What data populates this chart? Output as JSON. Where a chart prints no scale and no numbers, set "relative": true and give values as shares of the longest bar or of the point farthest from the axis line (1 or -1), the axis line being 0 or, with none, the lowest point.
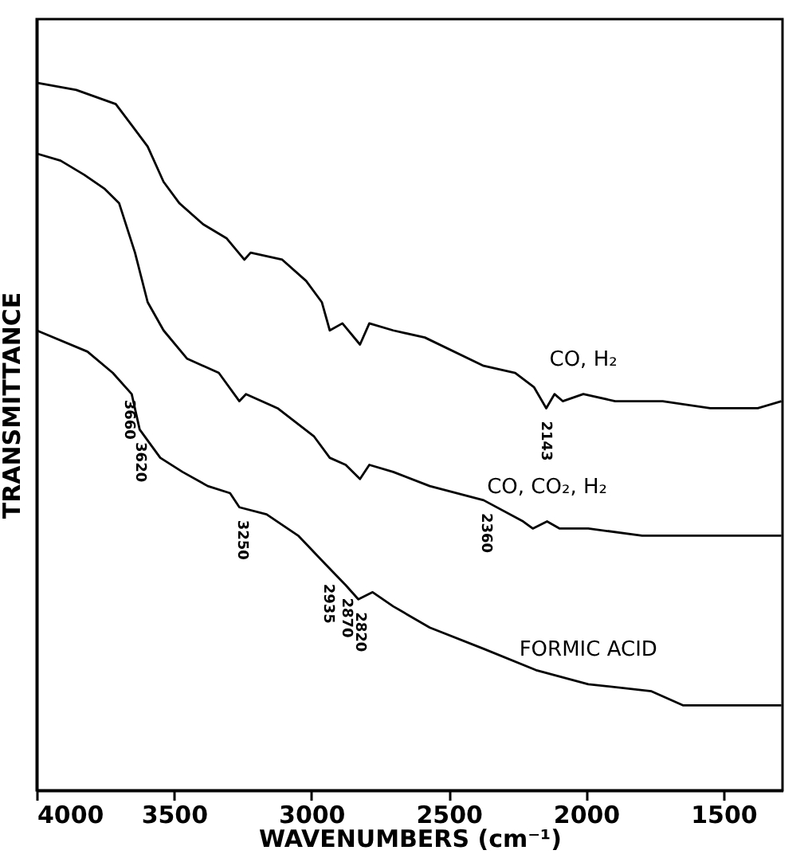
{
  "chart_data": {
    "type": "line",
    "relative": true,
    "xlabel": "WAVENUMBERS (cm⁻¹)",
    "ylabel": "TRANSMITTANCE",
    "xlim": [
      4000,
      1285
    ],
    "xticks": [
      4000,
      3500,
      3000,
      2500,
      2000,
      1500
    ],
    "grid": false,
    "marker": "none",
    "line_style": "solid",
    "series": [
      {
        "name": "CO, H₂",
        "color": "#000000",
        "x": [
          4000,
          3856,
          3712,
          3654,
          3596,
          3538,
          3481,
          3394,
          3308,
          3244,
          3221,
          3106,
          3019,
          2962,
          2933,
          2887,
          2823,
          2789,
          2702,
          2587,
          2373,
          2258,
          2190,
          2145,
          2115,
          2085,
          2010,
          1894,
          1721,
          1548,
          1375,
          1289
        ],
        "values": [
          1.0,
          0.99,
          0.97,
          0.94,
          0.91,
          0.86,
          0.83,
          0.8,
          0.78,
          0.75,
          0.76,
          0.75,
          0.72,
          0.69,
          0.65,
          0.66,
          0.63,
          0.66,
          0.65,
          0.64,
          0.6,
          0.59,
          0.57,
          0.54,
          0.56,
          0.55,
          0.56,
          0.55,
          0.55,
          0.54,
          0.54,
          0.55
        ]
      },
      {
        "name": "CO, CO₂, H₂",
        "color": "#000000",
        "x": [
          4000,
          3913,
          3827,
          3752,
          3700,
          3642,
          3596,
          3538,
          3452,
          3337,
          3262,
          3238,
          3123,
          2990,
          2933,
          2875,
          2823,
          2789,
          2702,
          2569,
          2373,
          2229,
          2194,
          2142,
          2096,
          1992,
          1796,
          1606,
          1289
        ],
        "values": [
          0.9,
          0.89,
          0.87,
          0.85,
          0.83,
          0.76,
          0.69,
          0.65,
          0.61,
          0.59,
          0.55,
          0.56,
          0.54,
          0.5,
          0.47,
          0.46,
          0.44,
          0.46,
          0.45,
          0.43,
          0.41,
          0.38,
          0.37,
          0.38,
          0.37,
          0.37,
          0.36,
          0.36,
          0.36
        ]
      },
      {
        "name": "FORMIC ACID",
        "color": "#000000",
        "x": [
          4000,
          3815,
          3723,
          3654,
          3625,
          3550,
          3469,
          3377,
          3296,
          3262,
          3163,
          3048,
          2950,
          2875,
          2829,
          2777,
          2702,
          2569,
          2373,
          2183,
          1992,
          1762,
          1646,
          1490,
          1289
        ],
        "values": [
          0.65,
          0.62,
          0.59,
          0.56,
          0.51,
          0.47,
          0.45,
          0.43,
          0.42,
          0.4,
          0.39,
          0.36,
          0.32,
          0.29,
          0.27,
          0.28,
          0.26,
          0.23,
          0.2,
          0.17,
          0.15,
          0.14,
          0.12,
          0.12,
          0.12
        ]
      }
    ],
    "annotations": [
      {
        "text": "3660",
        "x": 3660,
        "y": 0.57
      },
      {
        "text": "3620",
        "x": 3620,
        "y": 0.51
      },
      {
        "text": "3250",
        "x": 3250,
        "y": 0.4
      },
      {
        "text": "2935",
        "x": 2935,
        "y": 0.31
      },
      {
        "text": "2870",
        "x": 2870,
        "y": 0.29
      },
      {
        "text": "2820",
        "x": 2820,
        "y": 0.27
      },
      {
        "text": "2360",
        "x": 2360,
        "y": 0.41
      },
      {
        "text": "2143",
        "x": 2143,
        "y": 0.54
      }
    ]
  }
}
